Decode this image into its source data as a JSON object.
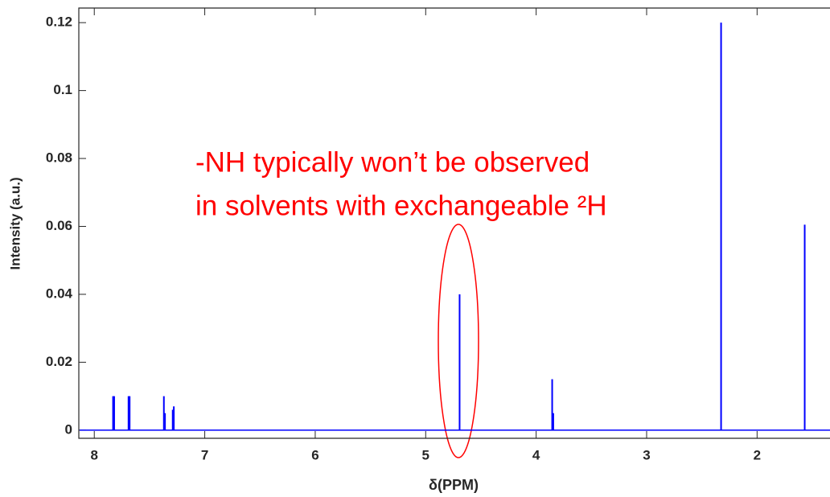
{
  "chart_data": {
    "type": "stick",
    "xlabel": "δ(PPM)",
    "ylabel": "Intensity (a.u.)",
    "annotation": [
      "-NH typically won’t be observed",
      "in solvents with exchangeable ²H"
    ],
    "annotation_color": "#ff0000",
    "x": [
      7.83,
      7.82,
      7.69,
      7.68,
      7.37,
      7.36,
      7.29,
      7.28,
      4.693,
      3.855,
      3.845,
      2.326,
      1.569
    ],
    "series": [
      {
        "color": "#0000ff",
        "values": [
          0.01,
          0.01,
          0.01,
          0.01,
          0.01,
          0.005,
          0.006,
          0.007,
          0.04,
          0.015,
          0.005,
          0.12,
          0.0605
        ]
      }
    ],
    "xlim": [
      8.14,
      1.34
    ],
    "ylim": [
      -0.0024,
      0.1243
    ],
    "xticks": [
      8,
      7,
      6,
      5,
      4,
      3,
      2
    ],
    "yticks": [
      0,
      0.02,
      0.04,
      0.06,
      0.08,
      0.1,
      0.12
    ]
  }
}
